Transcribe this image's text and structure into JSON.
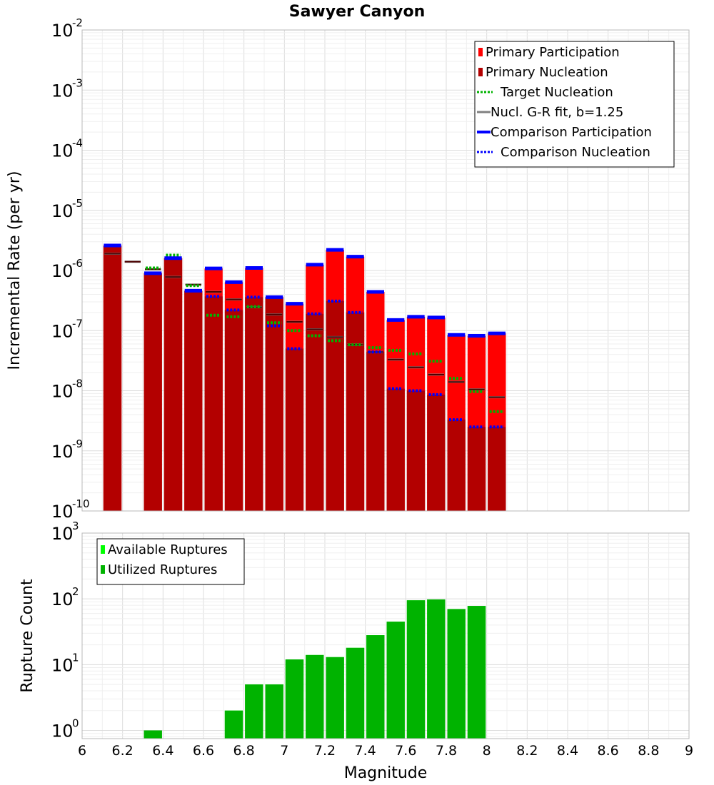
{
  "chart_data": [
    {
      "type": "bar",
      "title": "Sawyer Canyon",
      "xlabel": "Magnitude",
      "ylabel": "Incremental Rate (per yr)",
      "yscale": "log",
      "xlim": [
        6,
        9
      ],
      "ylim": [
        1e-10,
        0.01
      ],
      "grid": true,
      "legend_position": "top-right",
      "bin_width": 0.1,
      "x": [
        6.15,
        6.25,
        6.35,
        6.45,
        6.55,
        6.65,
        6.75,
        6.85,
        6.95,
        7.05,
        7.15,
        7.25,
        7.35,
        7.45,
        7.55,
        7.65,
        7.75,
        7.85,
        7.95,
        8.05
      ],
      "series": [
        {
          "name": "Primary Participation",
          "style": "bar",
          "color": "#ff0000",
          "values": [
            2.6e-06,
            null,
            9e-07,
            1.6e-06,
            4.6e-07,
            1.08e-06,
            6.4e-07,
            1.1e-06,
            3.6e-07,
            2.8e-07,
            1.25e-06,
            2.2e-06,
            1.7e-06,
            4.4e-07,
            1.5e-07,
            1.7e-07,
            1.65e-07,
            8.5e-08,
            8.2e-08,
            9e-08
          ]
        },
        {
          "name": "Primary Nucleation",
          "style": "bar",
          "color": "#b30000",
          "values": [
            2.6e-06,
            null,
            9e-07,
            1.6e-06,
            4.6e-07,
            3.7e-07,
            2.2e-07,
            3.6e-07,
            3.6e-07,
            5e-08,
            1.9e-07,
            3.1e-07,
            2e-07,
            4.4e-08,
            1.08e-08,
            1e-08,
            8.6e-09,
            3.3e-09,
            2.5e-09,
            2.5e-09
          ]
        },
        {
          "name": "Target Nucleation",
          "style": "dotted",
          "color": "#00b300",
          "values": [
            2.6e-06,
            null,
            1.1e-06,
            1.8e-06,
            5.6e-07,
            1.8e-07,
            1.7e-07,
            2.5e-07,
            1.35e-07,
            1e-07,
            8.2e-08,
            6.8e-08,
            5.8e-08,
            5.2e-08,
            4.7e-08,
            4.1e-08,
            3.1e-08,
            1.6e-08,
            9.7e-09,
            4.5e-09
          ]
        },
        {
          "name": "Nucl. G-R fit, b=1.25",
          "style": "solid",
          "color": "#808080",
          "values": [
            1.9e-06,
            1.4e-06,
            1.05e-06,
            7.8e-07,
            5.8e-07,
            4.4e-07,
            3.3e-07,
            2.45e-07,
            1.85e-07,
            1.4e-07,
            1.05e-07,
            7.8e-08,
            5.8e-08,
            4.4e-08,
            3.3e-08,
            2.45e-08,
            1.85e-08,
            1.4e-08,
            1.05e-08,
            7.8e-09
          ]
        },
        {
          "name": "Comparison Participation",
          "style": "solid",
          "color": "#0000ff",
          "values": [
            2.6e-06,
            null,
            9e-07,
            1.6e-06,
            4.6e-07,
            1.08e-06,
            6.4e-07,
            1.1e-06,
            3.6e-07,
            2.8e-07,
            1.25e-06,
            2.2e-06,
            1.7e-06,
            4.4e-07,
            1.5e-07,
            1.7e-07,
            1.65e-07,
            8.5e-08,
            8.2e-08,
            9e-08
          ]
        },
        {
          "name": "Comparison Nucleation",
          "style": "dotted",
          "color": "#0000ff",
          "values": [
            2.6e-06,
            null,
            9e-07,
            1.6e-06,
            4.6e-07,
            3.7e-07,
            2.2e-07,
            3.6e-07,
            1.2e-07,
            5e-08,
            1.9e-07,
            3.1e-07,
            2e-07,
            4.4e-08,
            1.08e-08,
            1e-08,
            8.6e-09,
            3.3e-09,
            2.5e-09,
            2.5e-09
          ]
        }
      ],
      "yticks": [
        {
          "base": "10",
          "exp": "-10"
        },
        {
          "base": "10",
          "exp": "-9"
        },
        {
          "base": "10",
          "exp": "-8"
        },
        {
          "base": "10",
          "exp": "-7"
        },
        {
          "base": "10",
          "exp": "-6"
        },
        {
          "base": "10",
          "exp": "-5"
        },
        {
          "base": "10",
          "exp": "-4"
        },
        {
          "base": "10",
          "exp": "-3"
        },
        {
          "base": "10",
          "exp": "-2"
        }
      ]
    },
    {
      "type": "bar",
      "title": "",
      "xlabel": "Magnitude",
      "ylabel": "Rupture Count",
      "yscale": "log",
      "xlim": [
        6,
        9
      ],
      "ylim": [
        0.75,
        1000
      ],
      "grid": true,
      "legend_position": "top-left",
      "bin_width": 0.1,
      "x": [
        6.35,
        6.75,
        6.85,
        6.95,
        7.05,
        7.15,
        7.25,
        7.35,
        7.45,
        7.55,
        7.65,
        7.75,
        7.85,
        7.95
      ],
      "series": [
        {
          "name": "Available Ruptures",
          "style": "bar",
          "color": "#00ff00",
          "values": [
            1,
            2,
            5,
            5,
            12,
            14,
            13,
            18,
            28,
            45,
            95,
            98,
            70,
            78
          ]
        },
        {
          "name": "Utilized Ruptures",
          "style": "bar",
          "color": "#00b300",
          "values": [
            1,
            2,
            5,
            5,
            12,
            14,
            13,
            18,
            28,
            45,
            95,
            98,
            70,
            78
          ]
        }
      ],
      "yticks": [
        {
          "base": "10",
          "exp": "0"
        },
        {
          "base": "10",
          "exp": "1"
        },
        {
          "base": "10",
          "exp": "2"
        },
        {
          "base": "10",
          "exp": "3"
        }
      ]
    }
  ],
  "xticks": [
    "6",
    "6.2",
    "6.4",
    "6.6",
    "6.8",
    "7",
    "7.2",
    "7.4",
    "7.6",
    "7.8",
    "8",
    "8.2",
    "8.4",
    "8.6",
    "8.8",
    "9"
  ]
}
